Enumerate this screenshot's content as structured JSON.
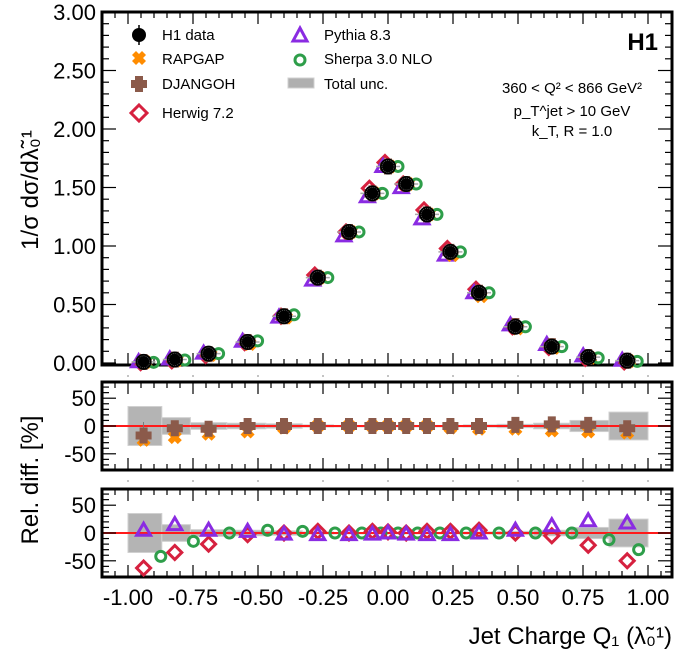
{
  "chart_data": [
    {
      "panel": "main",
      "type": "scatter",
      "ylabel": "1/σ dσ/dλ̃₀¹",
      "ylim": [
        0,
        3.0
      ],
      "xlim": [
        -1.1,
        1.1
      ],
      "yticks": [
        "0.00",
        "0.50",
        "1.00",
        "1.50",
        "2.00",
        "2.50",
        "3.00"
      ],
      "ytick_values": [
        0,
        0.5,
        1.0,
        1.5,
        2.0,
        2.5,
        3.0
      ],
      "brand": "H1",
      "annotations": [
        "360 < Q² < 866 GeV²",
        "p_T^jet > 10 GeV",
        "k_T, R = 1.0"
      ],
      "legend": {
        "placement": "top-left",
        "entries": [
          {
            "label": "H1 data",
            "marker": "filled-circle",
            "color": "#000000"
          },
          {
            "label": "RAPGAP",
            "marker": "x-cross",
            "color": "#ff8c00"
          },
          {
            "label": "DJANGOH",
            "marker": "plus-cross",
            "color": "#8b5a4a"
          },
          {
            "label": "Herwig 7.2",
            "marker": "open-diamond",
            "color": "#d6213f"
          },
          {
            "label": "Pythia 8.3",
            "marker": "open-triangle",
            "color": "#8a2be2"
          },
          {
            "label": "Sherpa 3.0 NLO",
            "marker": "open-circle",
            "color": "#2e9e4a"
          },
          {
            "label": "Total unc.",
            "marker": "grey-box",
            "color": "#b0b0b0"
          }
        ]
      },
      "x": [
        -0.94,
        -0.82,
        -0.69,
        -0.54,
        -0.4,
        -0.27,
        -0.15,
        -0.06,
        0.0,
        0.07,
        0.15,
        0.24,
        0.35,
        0.49,
        0.63,
        0.77,
        0.92
      ],
      "series": [
        {
          "name": "H1 data",
          "values": [
            0.01,
            0.03,
            0.08,
            0.18,
            0.4,
            0.73,
            1.12,
            1.45,
            1.68,
            1.53,
            1.27,
            0.95,
            0.6,
            0.31,
            0.14,
            0.05,
            0.02
          ]
        }
      ]
    },
    {
      "panel": "ratio-1",
      "type": "scatter",
      "ylabel": "Rel. diff. [%]",
      "ylim": [
        -80,
        80
      ],
      "yticks": [
        "-50",
        "0",
        "50"
      ],
      "ytick_values": [
        -50,
        0,
        50
      ],
      "x": [
        -0.94,
        -0.82,
        -0.69,
        -0.54,
        -0.4,
        -0.27,
        -0.15,
        -0.06,
        0.0,
        0.07,
        0.15,
        0.24,
        0.35,
        0.49,
        0.63,
        0.77,
        0.92
      ],
      "bin_edges": [
        -1.0,
        -0.87,
        -0.76,
        -0.62,
        -0.47,
        -0.33,
        -0.21,
        -0.1,
        -0.03,
        0.03,
        0.1,
        0.19,
        0.29,
        0.42,
        0.56,
        0.7,
        0.85,
        1.0
      ],
      "total_unc": [
        35,
        15,
        6,
        5,
        4,
        2,
        1,
        1,
        1,
        1,
        1,
        1,
        2,
        3,
        5,
        10,
        25
      ],
      "series": [
        {
          "name": "DJANGOH",
          "values": [
            -17,
            -4,
            -5,
            0,
            0,
            0,
            0,
            0,
            0,
            0,
            0,
            0,
            0,
            2,
            3,
            2,
            -4
          ]
        },
        {
          "name": "RAPGAP",
          "values": [
            -25,
            -20,
            -14,
            -10,
            -3,
            0,
            0,
            0,
            0,
            0,
            0,
            -3,
            -5,
            -5,
            -8,
            -10,
            -12
          ]
        }
      ]
    },
    {
      "panel": "ratio-2",
      "type": "scatter",
      "ylabel": "",
      "ylim": [
        -80,
        80
      ],
      "yticks": [
        "-50",
        "0",
        "50"
      ],
      "ytick_values": [
        -50,
        0,
        50
      ],
      "xlabel": "Jet Charge Q₁ (λ̃₀¹)",
      "xticks": [
        "-1.00",
        "-0.75",
        "-0.50",
        "-0.25",
        "0.00",
        "0.25",
        "0.50",
        "0.75",
        "1.00"
      ],
      "xtick_values": [
        -1.0,
        -0.75,
        -0.5,
        -0.25,
        0.0,
        0.25,
        0.5,
        0.75,
        1.0
      ],
      "x": [
        -0.94,
        -0.82,
        -0.69,
        -0.54,
        -0.4,
        -0.27,
        -0.15,
        -0.06,
        0.0,
        0.07,
        0.15,
        0.24,
        0.35,
        0.49,
        0.63,
        0.77,
        0.92
      ],
      "bin_edges": [
        -1.0,
        -0.87,
        -0.76,
        -0.62,
        -0.47,
        -0.33,
        -0.21,
        -0.1,
        -0.03,
        0.03,
        0.1,
        0.19,
        0.29,
        0.42,
        0.56,
        0.7,
        0.85,
        1.0
      ],
      "total_unc": [
        35,
        15,
        6,
        5,
        4,
        2,
        1,
        1,
        1,
        1,
        1,
        1,
        2,
        3,
        5,
        10,
        25
      ],
      "series": [
        {
          "name": "Pythia 8.3",
          "values": [
            5,
            15,
            5,
            3,
            -2,
            -3,
            -3,
            -2,
            0,
            -2,
            -3,
            -3,
            0,
            5,
            13,
            22,
            18
          ]
        },
        {
          "name": "Herwig 7.2",
          "values": [
            -63,
            -35,
            -20,
            -3,
            0,
            3,
            0,
            3,
            2,
            0,
            3,
            3,
            5,
            0,
            -5,
            -22,
            -50
          ]
        },
        {
          "name": "Sherpa 3.0 NLO",
          "values": [
            -42,
            -15,
            0,
            5,
            3,
            0,
            0,
            0,
            0,
            0,
            0,
            0,
            0,
            0,
            0,
            -12,
            -30
          ]
        }
      ]
    }
  ]
}
